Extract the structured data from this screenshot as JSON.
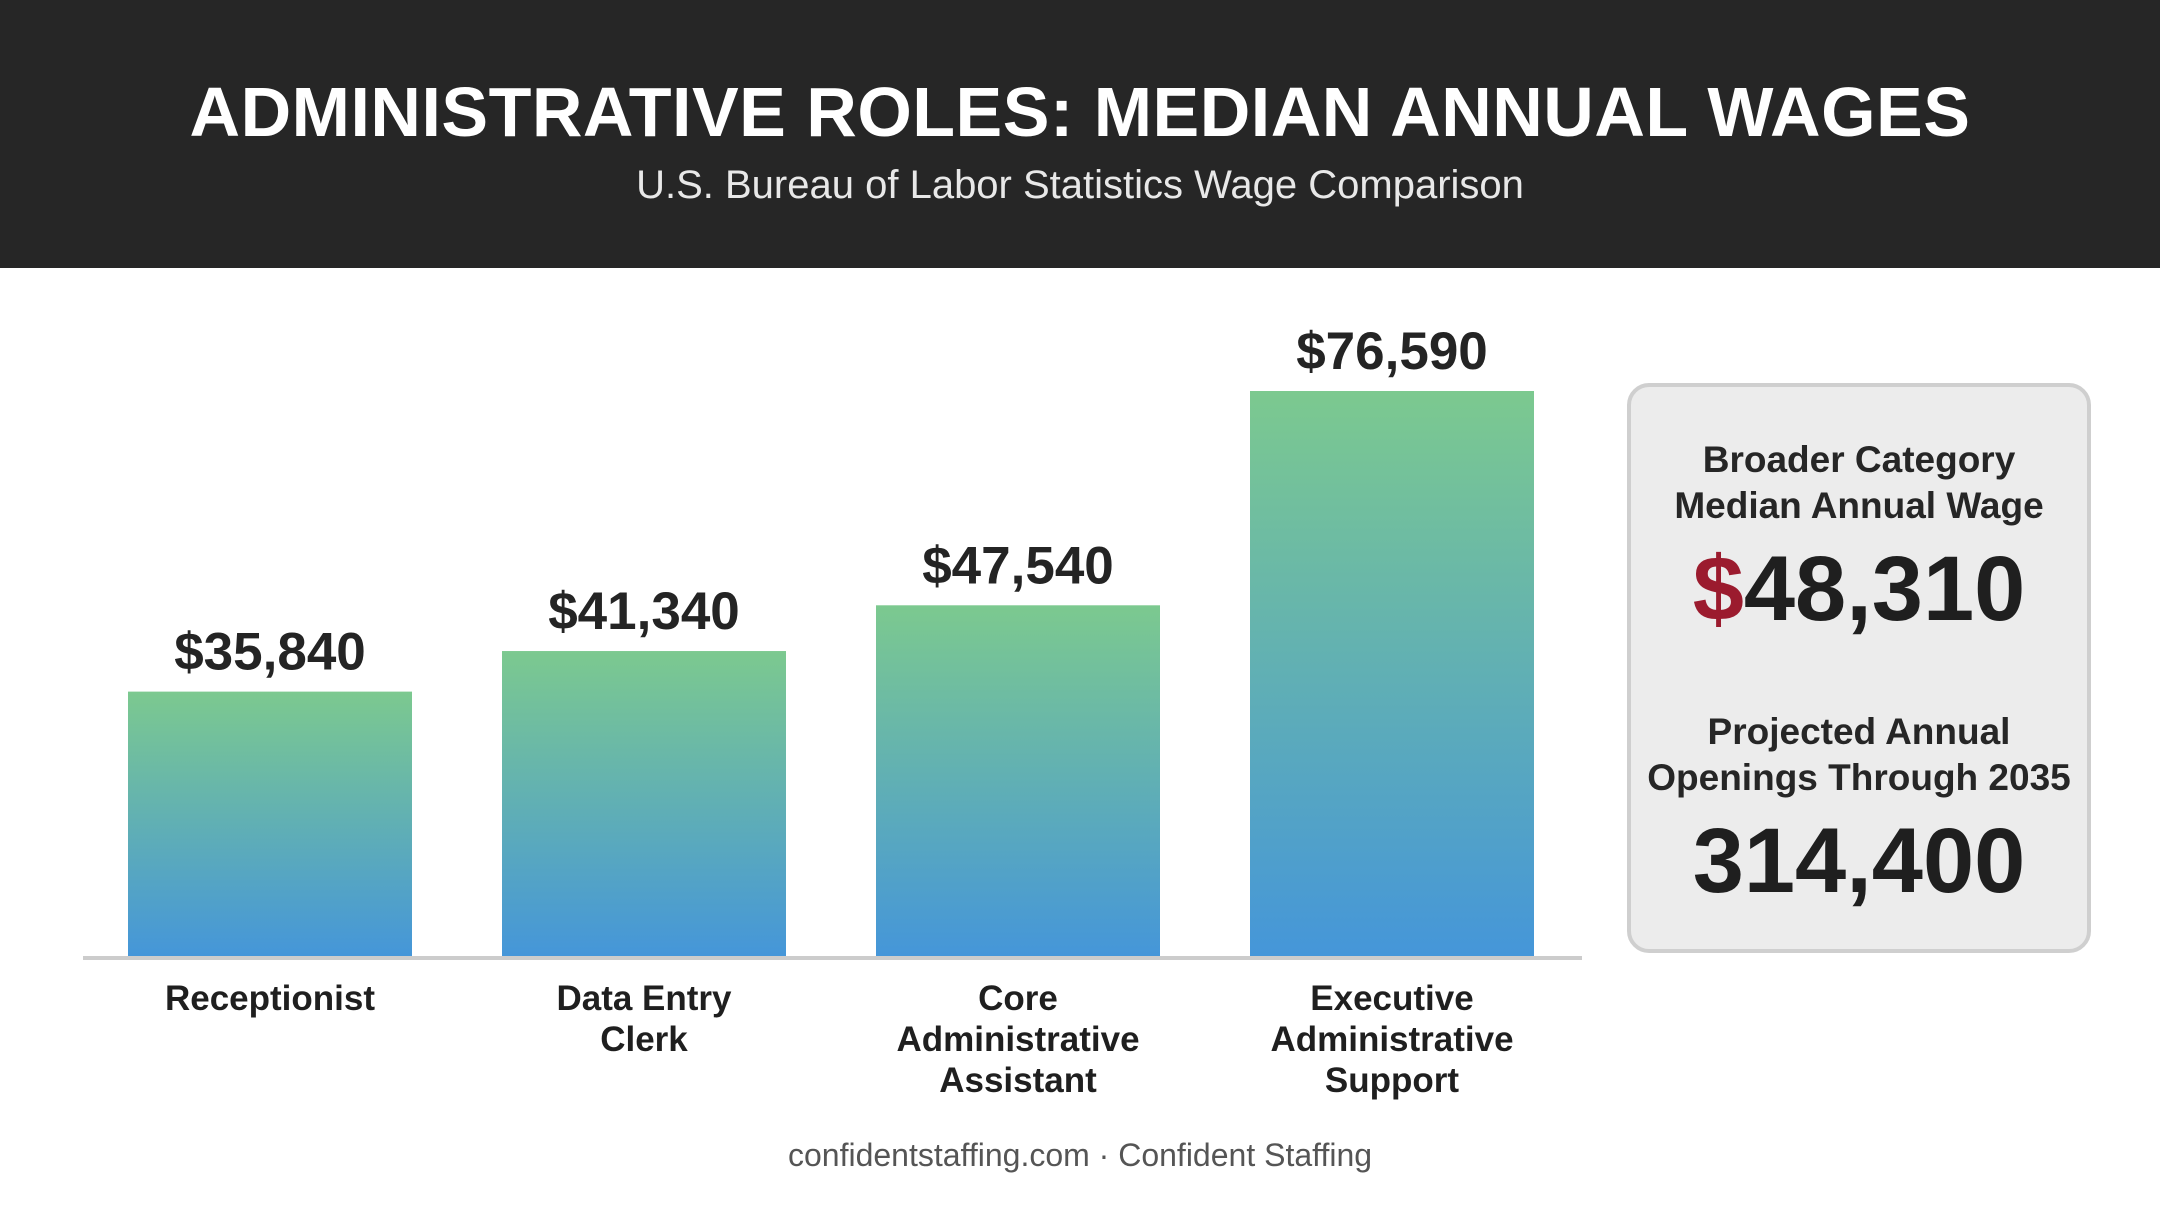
{
  "header": {
    "title": "ADMINISTRATIVE ROLES: MEDIAN ANNUAL WAGES",
    "subtitle": "U.S. Bureau of Labor Statistics Wage Comparison"
  },
  "chart_data": {
    "type": "bar",
    "title": "ADMINISTRATIVE ROLES: MEDIAN ANNUAL WAGES",
    "subtitle": "U.S. Bureau of Labor Statistics Wage Comparison",
    "categories": [
      [
        "Receptionist"
      ],
      [
        "Data Entry",
        "Clerk"
      ],
      [
        "Core",
        "Administrative",
        "Assistant"
      ],
      [
        "Executive",
        "Administrative",
        "Support"
      ]
    ],
    "values": [
      35840,
      41340,
      47540,
      76590
    ],
    "value_labels": [
      "$35,840",
      "$41,340",
      "$47,540",
      "$76,590"
    ],
    "ylim": [
      0,
      80000
    ],
    "grid": false,
    "colors": {
      "bar_top": "#7cc98f",
      "bar_bottom": "#4596d9",
      "baseline": "#cccccc"
    }
  },
  "stats": {
    "broader_label_line1": "Broader Category",
    "broader_label_line2": "Median Annual Wage",
    "broader_currency": "$",
    "broader_amount": "48,310",
    "openings_label_line1": "Projected Annual",
    "openings_label_line2": "Openings Through 2035",
    "openings_value": "314,400"
  },
  "footer": {
    "text": "confidentstaffing.com · Confident Staffing"
  },
  "colors": {
    "header_bg": "#262626",
    "accent": "#9b1b2e",
    "card_bg": "#ececec"
  }
}
